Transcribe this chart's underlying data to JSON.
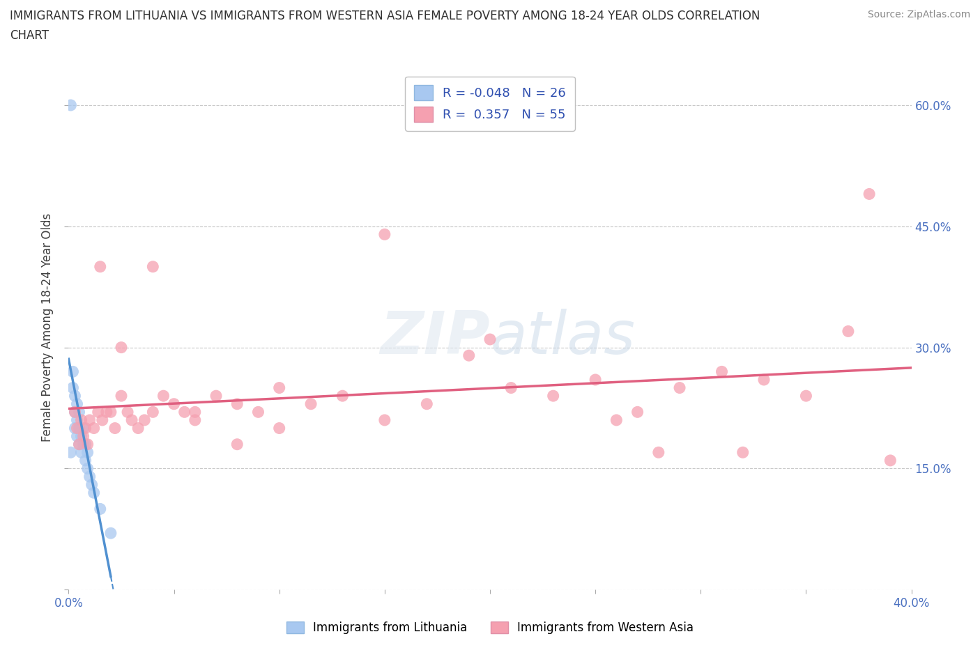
{
  "title": "IMMIGRANTS FROM LITHUANIA VS IMMIGRANTS FROM WESTERN ASIA FEMALE POVERTY AMONG 18-24 YEAR OLDS CORRELATION\nCHART",
  "source": "Source: ZipAtlas.com",
  "ylabel": "Female Poverty Among 18-24 Year Olds",
  "xmin": 0.0,
  "xmax": 0.4,
  "ymin": 0.0,
  "ymax": 0.65,
  "x_ticks": [
    0.0,
    0.05,
    0.1,
    0.15,
    0.2,
    0.25,
    0.3,
    0.35,
    0.4
  ],
  "x_tick_labels": [
    "0.0%",
    "",
    "",
    "",
    "",
    "",
    "",
    "",
    "40.0%"
  ],
  "y_ticks": [
    0.0,
    0.15,
    0.3,
    0.45,
    0.6
  ],
  "y_tick_labels": [
    "",
    "15.0%",
    "30.0%",
    "45.0%",
    "60.0%"
  ],
  "color_lithuania": "#a8c8f0",
  "color_western_asia": "#f5a0b0",
  "color_line_lithuania": "#5090d0",
  "color_line_western_asia": "#e06080",
  "color_grid": "#c8c8c8",
  "background_color": "#ffffff",
  "lithuania_x": [
    0.001,
    0.002,
    0.002,
    0.003,
    0.003,
    0.003,
    0.004,
    0.004,
    0.004,
    0.005,
    0.005,
    0.005,
    0.006,
    0.006,
    0.007,
    0.007,
    0.008,
    0.008,
    0.009,
    0.009,
    0.01,
    0.011,
    0.012,
    0.015,
    0.02,
    0.001
  ],
  "lithuania_y": [
    0.17,
    0.25,
    0.27,
    0.2,
    0.22,
    0.24,
    0.19,
    0.21,
    0.23,
    0.18,
    0.2,
    0.22,
    0.17,
    0.19,
    0.18,
    0.2,
    0.16,
    0.18,
    0.15,
    0.17,
    0.14,
    0.13,
    0.12,
    0.1,
    0.07,
    0.6
  ],
  "western_asia_x": [
    0.003,
    0.004,
    0.005,
    0.006,
    0.007,
    0.008,
    0.009,
    0.01,
    0.012,
    0.014,
    0.016,
    0.018,
    0.02,
    0.022,
    0.025,
    0.028,
    0.03,
    0.033,
    0.036,
    0.04,
    0.045,
    0.05,
    0.055,
    0.06,
    0.07,
    0.08,
    0.09,
    0.1,
    0.115,
    0.13,
    0.15,
    0.17,
    0.19,
    0.21,
    0.23,
    0.25,
    0.27,
    0.29,
    0.31,
    0.33,
    0.35,
    0.37,
    0.39,
    0.015,
    0.025,
    0.04,
    0.06,
    0.08,
    0.1,
    0.15,
    0.2,
    0.26,
    0.32,
    0.38,
    0.28
  ],
  "western_asia_y": [
    0.22,
    0.2,
    0.18,
    0.21,
    0.19,
    0.2,
    0.18,
    0.21,
    0.2,
    0.22,
    0.21,
    0.22,
    0.22,
    0.2,
    0.24,
    0.22,
    0.21,
    0.2,
    0.21,
    0.22,
    0.24,
    0.23,
    0.22,
    0.21,
    0.24,
    0.23,
    0.22,
    0.25,
    0.23,
    0.24,
    0.21,
    0.23,
    0.29,
    0.25,
    0.24,
    0.26,
    0.22,
    0.25,
    0.27,
    0.26,
    0.24,
    0.32,
    0.16,
    0.4,
    0.3,
    0.4,
    0.22,
    0.18,
    0.2,
    0.44,
    0.31,
    0.21,
    0.17,
    0.49,
    0.17
  ]
}
